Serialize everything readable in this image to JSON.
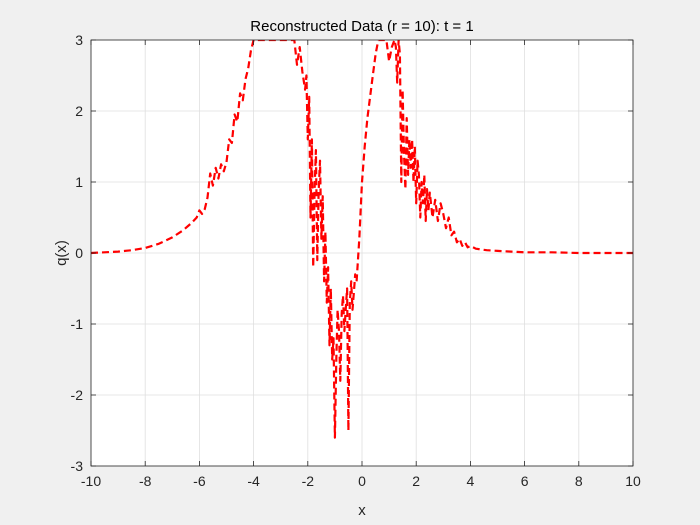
{
  "chart_data": {
    "type": "line",
    "title": "Reconstructed Data (r = 10): t = 1",
    "xlabel": "x",
    "ylabel": "q(x)",
    "xlim": [
      -10,
      10
    ],
    "ylim": [
      -3,
      3
    ],
    "xticks": [
      -10,
      -8,
      -6,
      -4,
      -2,
      0,
      2,
      4,
      6,
      8,
      10
    ],
    "yticks": [
      -3,
      -2,
      -1,
      0,
      1,
      2,
      3
    ],
    "grid": true,
    "line_style": "dashed",
    "colors": {
      "line": "#ff0000",
      "plot_bg": "#ffffff",
      "figure_bg": "#f0f0f0",
      "grid": "#dfdfdf",
      "axis": "#262626"
    },
    "series": [
      {
        "x": [
          -10,
          -9.5,
          -9,
          -8.5,
          -8,
          -7.5,
          -7,
          -6.6,
          -6.3,
          -6.1,
          -6,
          -5.9,
          -5.8,
          -5.7,
          -5.6,
          -5.5,
          -5.4,
          -5.3,
          -5.2,
          -5.1,
          -5,
          -4.9,
          -4.8,
          -4.7,
          -4.6,
          -4.5,
          -4.4,
          -4.3,
          -4.2,
          -4.1,
          -4.0,
          -3.95,
          -2.5,
          -2.4,
          -2.3,
          -2.2,
          -2.1,
          -2.05,
          -2.0,
          -1.95,
          -1.9,
          -1.85,
          -1.8,
          -1.75,
          -1.7,
          -1.65,
          -1.6,
          -1.55,
          -1.5,
          -1.45,
          -1.4,
          -1.35,
          -1.3,
          -1.25,
          -1.2,
          -1.15,
          -1.1,
          -1.05,
          -1.0,
          -0.95,
          -0.9,
          -0.85,
          -0.8,
          -0.75,
          -0.7,
          -0.65,
          -0.6,
          -0.55,
          -0.5,
          -0.45,
          -0.4,
          -0.35,
          -0.3,
          -0.25,
          -0.2,
          -0.1,
          0.0,
          0.1,
          0.2,
          0.3,
          0.4,
          0.5,
          0.6,
          0.7,
          0.8,
          0.9,
          1.0,
          1.1,
          1.2,
          1.25,
          1.3,
          1.35,
          1.4,
          1.45,
          1.5,
          1.55,
          1.6,
          1.65,
          1.7,
          1.75,
          1.8,
          1.85,
          1.9,
          1.95,
          2.0,
          2.05,
          2.1,
          2.15,
          2.2,
          2.25,
          2.3,
          2.35,
          2.4,
          2.45,
          2.5,
          2.6,
          2.7,
          2.8,
          2.9,
          3.0,
          3.1,
          3.2,
          3.3,
          3.4,
          3.5,
          3.6,
          3.7,
          3.8,
          3.9,
          4.0,
          4.2,
          4.4,
          4.6,
          5,
          5.5,
          6,
          7,
          8,
          9,
          10
        ],
        "y": [
          0.0,
          0.01,
          0.02,
          0.04,
          0.07,
          0.13,
          0.22,
          0.32,
          0.42,
          0.5,
          0.6,
          0.55,
          0.62,
          0.78,
          1.12,
          0.95,
          1.2,
          1.05,
          1.25,
          1.15,
          1.28,
          1.6,
          1.55,
          1.95,
          1.85,
          2.25,
          2.15,
          2.45,
          2.6,
          2.85,
          3.0,
          3.0,
          3.0,
          2.65,
          2.9,
          2.55,
          2.3,
          2.5,
          1.6,
          2.2,
          0.5,
          1.6,
          -0.2,
          0.9,
          1.45,
          -0.1,
          0.85,
          1.3,
          0.2,
          0.8,
          -0.4,
          0.3,
          -0.7,
          -0.2,
          -1.3,
          -0.5,
          -1.5,
          -1.2,
          -2.6,
          -1.5,
          -0.8,
          -1.1,
          -1.8,
          -0.85,
          -0.6,
          -1.1,
          -0.8,
          -0.5,
          -2.5,
          -0.7,
          -0.4,
          -0.8,
          -0.55,
          -0.3,
          -0.4,
          0.2,
          1.0,
          1.5,
          1.9,
          2.2,
          2.5,
          2.8,
          3.0,
          3.0,
          3.0,
          3.0,
          2.7,
          2.9,
          3.0,
          2.9,
          2.4,
          3.0,
          2.8,
          1.0,
          2.3,
          1.4,
          0.9,
          1.9,
          1.1,
          1.6,
          1.2,
          1.6,
          1.0,
          1.5,
          0.7,
          1.3,
          1.1,
          0.5,
          1.0,
          0.7,
          1.1,
          0.45,
          0.9,
          0.6,
          0.85,
          0.5,
          0.75,
          0.45,
          0.7,
          0.55,
          0.35,
          0.5,
          0.25,
          0.3,
          0.15,
          0.2,
          0.1,
          0.15,
          0.08,
          0.1,
          0.06,
          0.05,
          0.04,
          0.03,
          0.02,
          0.01,
          0.01,
          0.0,
          0.0,
          0.0
        ]
      }
    ]
  }
}
